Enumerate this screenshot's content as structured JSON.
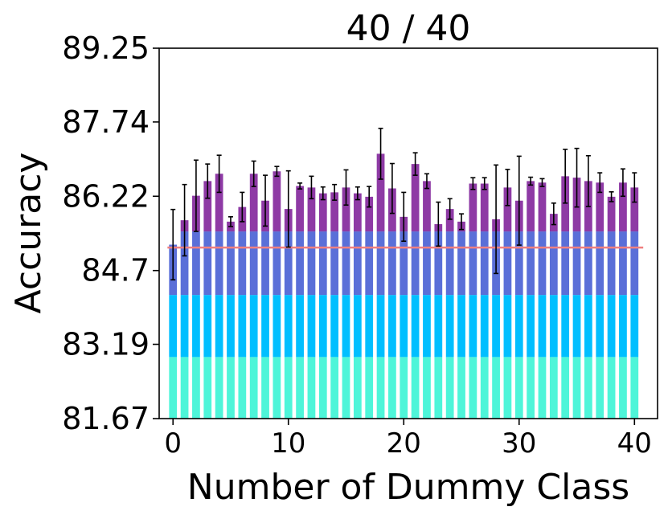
{
  "chart_data": {
    "type": "bar",
    "title": "40 / 40",
    "xlabel": "Number of Dummy Class",
    "ylabel": "Accuracy",
    "xlim": [
      -1.2,
      42.0
    ],
    "ylim": [
      81.67,
      89.25
    ],
    "yticks": [
      "81.67",
      "83.19",
      "84.7",
      "86.22",
      "87.74",
      "89.25"
    ],
    "xticks": [
      0,
      10,
      20,
      30,
      40
    ],
    "x": [
      0,
      1,
      2,
      3,
      4,
      5,
      6,
      7,
      8,
      9,
      10,
      11,
      12,
      13,
      14,
      15,
      16,
      17,
      18,
      19,
      20,
      21,
      22,
      23,
      24,
      25,
      26,
      27,
      28,
      29,
      30,
      31,
      32,
      33,
      34,
      35,
      36,
      37,
      38,
      39,
      40
    ],
    "values": [
      85.23,
      85.73,
      86.23,
      86.53,
      86.68,
      85.7,
      86.0,
      86.68,
      86.13,
      86.73,
      85.96,
      86.43,
      86.4,
      86.28,
      86.3,
      86.4,
      86.28,
      86.21,
      87.09,
      86.38,
      85.8,
      86.88,
      86.53,
      85.65,
      85.96,
      85.7,
      86.48,
      86.48,
      85.75,
      86.4,
      86.13,
      86.53,
      86.5,
      85.86,
      86.63,
      86.6,
      86.53,
      86.5,
      86.21,
      86.5,
      86.4
    ],
    "errors": [
      0.72,
      0.73,
      0.73,
      0.35,
      0.38,
      0.1,
      0.3,
      0.26,
      0.52,
      0.1,
      0.78,
      0.06,
      0.23,
      0.13,
      0.16,
      0.36,
      0.13,
      0.21,
      0.52,
      0.51,
      0.5,
      0.23,
      0.15,
      0.45,
      0.21,
      0.16,
      0.12,
      0.12,
      1.11,
      0.37,
      0.91,
      0.08,
      0.08,
      0.22,
      0.55,
      0.6,
      0.52,
      0.2,
      0.1,
      0.28,
      0.3
    ],
    "baseline": 85.17,
    "bands": [
      {
        "from": 81.67,
        "to": 82.93,
        "color": "#4ef5d9"
      },
      {
        "from": 82.93,
        "to": 84.2,
        "color": "#00bfff"
      },
      {
        "from": 84.2,
        "to": 85.5,
        "color": "#5a6fd8"
      },
      {
        "from": 85.5,
        "to": 89.25,
        "color": "#8e3aa5"
      }
    ],
    "colors": {
      "baseline": "#f08080",
      "error": "#000000",
      "axis": "#000000"
    },
    "grid": false
  }
}
